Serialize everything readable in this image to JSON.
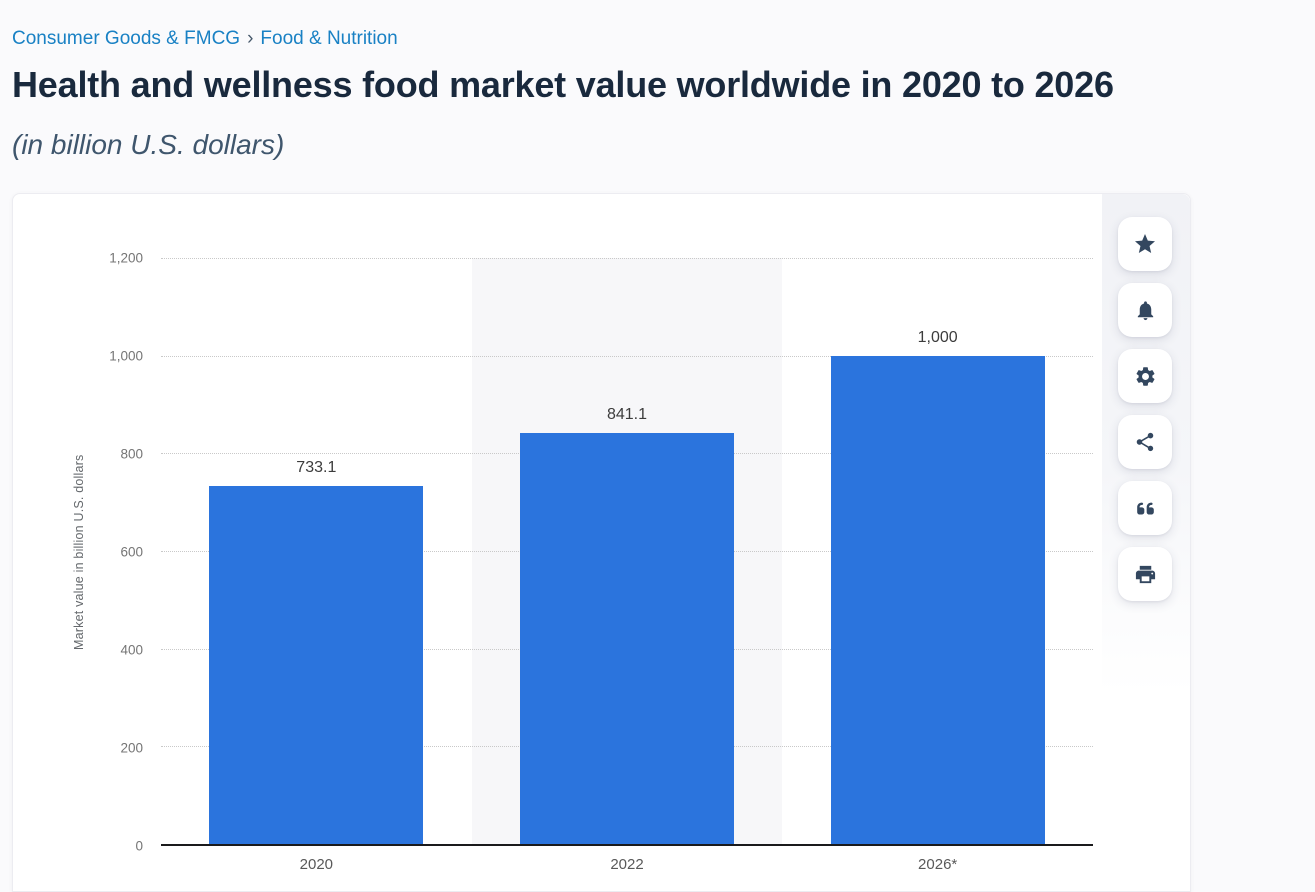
{
  "breadcrumb": {
    "separator": "›",
    "items": [
      {
        "label": "Consumer Goods & FMCG"
      },
      {
        "label": "Food & Nutrition"
      }
    ]
  },
  "header": {
    "title": "Health and wellness food market value worldwide in 2020 to 2026",
    "subtitle": "(in billion U.S. dollars)"
  },
  "toolbar": {
    "buttons": [
      {
        "name": "favorite",
        "icon": "star-icon"
      },
      {
        "name": "alerts",
        "icon": "bell-icon"
      },
      {
        "name": "settings",
        "icon": "gear-icon"
      },
      {
        "name": "share",
        "icon": "share-icon"
      },
      {
        "name": "cite",
        "icon": "quote-icon"
      },
      {
        "name": "print",
        "icon": "printer-icon"
      }
    ]
  },
  "chart_data": {
    "type": "bar",
    "title": "Health and wellness food market value worldwide in 2020 to 2026",
    "subtitle": "(in billion U.S. dollars)",
    "categories": [
      "2020",
      "2022",
      "2026*"
    ],
    "values": [
      733.1,
      841.1,
      1000
    ],
    "value_labels": [
      "733.1",
      "841.1",
      "1,000"
    ],
    "xlabel": "",
    "ylabel": "Market value in billion U.S. dollars",
    "ylim": [
      0,
      1200
    ],
    "ytick_interval": 200,
    "yticks": [
      {
        "value": 1200,
        "label": "1,200"
      },
      {
        "value": 1000,
        "label": "1,000"
      },
      {
        "value": 800,
        "label": "800"
      },
      {
        "value": 600,
        "label": "600"
      },
      {
        "value": 400,
        "label": "400"
      },
      {
        "value": 200,
        "label": "200"
      },
      {
        "value": 0,
        "label": "0"
      }
    ],
    "grid": "horizontal-dotted",
    "legend": "none",
    "bar_color": "#2b74dd",
    "highlighted_category_index": 1,
    "highlight_color": "#f7f7f9"
  },
  "colors": {
    "accent_blue": "#2b74dd",
    "breadcrumb_link": "#1981c4",
    "title_text": "#19293d",
    "subtitle_text": "#3f566d",
    "icon_color": "#33475f",
    "gridline": "#c9c9c9",
    "axis_line": "#1a1a1c"
  }
}
